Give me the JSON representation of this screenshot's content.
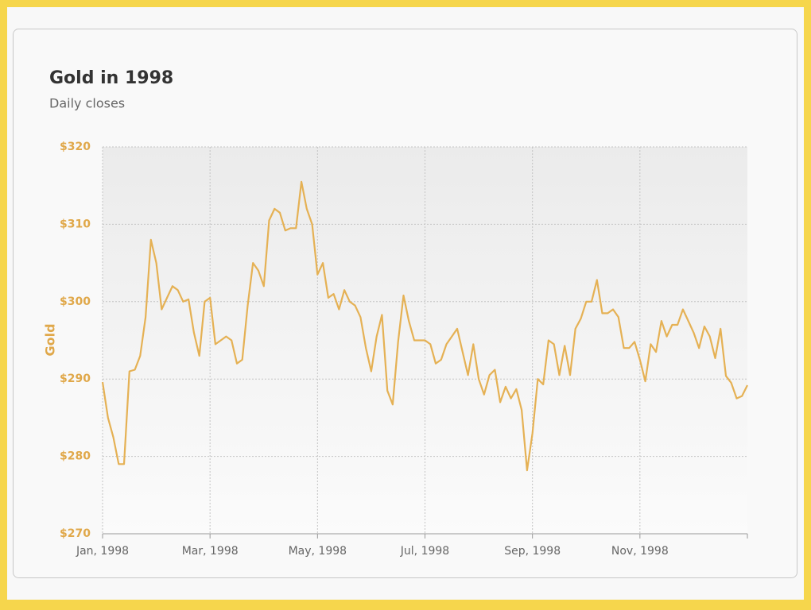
{
  "chart_data": {
    "type": "line",
    "title": "Gold in 1998",
    "subtitle": "Daily closes",
    "y_label": "Gold",
    "categories": [
      "Jan, 1998",
      null,
      null,
      null,
      null,
      null,
      null,
      null,
      null,
      null,
      null,
      null,
      null,
      null,
      null,
      null,
      null,
      null,
      null,
      null,
      "Mar, 1998",
      null,
      null,
      null,
      null,
      null,
      null,
      null,
      null,
      null,
      null,
      null,
      null,
      null,
      null,
      null,
      null,
      null,
      null,
      null,
      "May, 1998",
      null,
      null,
      null,
      null,
      null,
      null,
      null,
      null,
      null,
      null,
      null,
      null,
      null,
      null,
      null,
      null,
      null,
      null,
      null,
      "Jul, 1998",
      null,
      null,
      null,
      null,
      null,
      null,
      null,
      null,
      null,
      null,
      null,
      null,
      null,
      null,
      null,
      null,
      null,
      null,
      null,
      "Sep, 1998",
      null,
      null,
      null,
      null,
      null,
      null,
      null,
      null,
      null,
      null,
      null,
      null,
      null,
      null,
      null,
      null,
      null,
      null,
      null,
      "Nov, 1998",
      null,
      null,
      null,
      null,
      null,
      null,
      null,
      null,
      null,
      null,
      null,
      null,
      null,
      null,
      null,
      null,
      null,
      null,
      null,
      null
    ],
    "values": [
      289.6,
      285,
      282.5,
      279,
      279,
      291,
      291.2,
      293,
      298,
      308,
      305,
      299,
      300.5,
      302,
      301.5,
      300,
      300.3,
      296,
      293,
      300,
      300.5,
      294.5,
      295,
      295.5,
      295,
      292,
      292.5,
      299.5,
      305,
      304,
      302,
      310.5,
      312,
      311.5,
      309.2,
      309.5,
      309.5,
      315.5,
      312,
      310,
      303.5,
      305,
      300.5,
      301,
      299,
      301.5,
      300,
      299.5,
      298,
      294,
      291,
      295.5,
      298.3,
      288.5,
      286.7,
      294.8,
      300.8,
      297.5,
      295,
      295,
      295,
      294.5,
      292,
      292.5,
      294.5,
      295.5,
      296.5,
      293.5,
      290.5,
      294.5,
      290,
      288,
      290.5,
      291.2,
      287,
      289,
      287.5,
      288.7,
      286,
      278.2,
      283,
      290,
      289.3,
      295,
      294.5,
      290.5,
      294.3,
      290.5,
      296.5,
      297.8,
      300,
      300,
      302.8,
      298.5,
      298.5,
      299,
      298,
      294,
      294,
      294.8,
      292.5,
      289.7,
      294.5,
      293.5,
      297.5,
      295.5,
      297,
      297,
      299,
      297.5,
      296,
      294,
      296.8,
      295.5,
      292.7,
      296.5,
      290.4,
      289.5,
      287.5,
      287.8,
      289.2
    ],
    "color": "#e5b154",
    "ylim": [
      270,
      320
    ],
    "yticks": [
      {
        "value": 270,
        "label": "$270"
      },
      {
        "value": 280,
        "label": "$280"
      },
      {
        "value": 290,
        "label": "$290"
      },
      {
        "value": 300,
        "label": "$300"
      },
      {
        "value": 310,
        "label": "$310"
      },
      {
        "value": 320,
        "label": "$320"
      }
    ],
    "grid": true
  }
}
